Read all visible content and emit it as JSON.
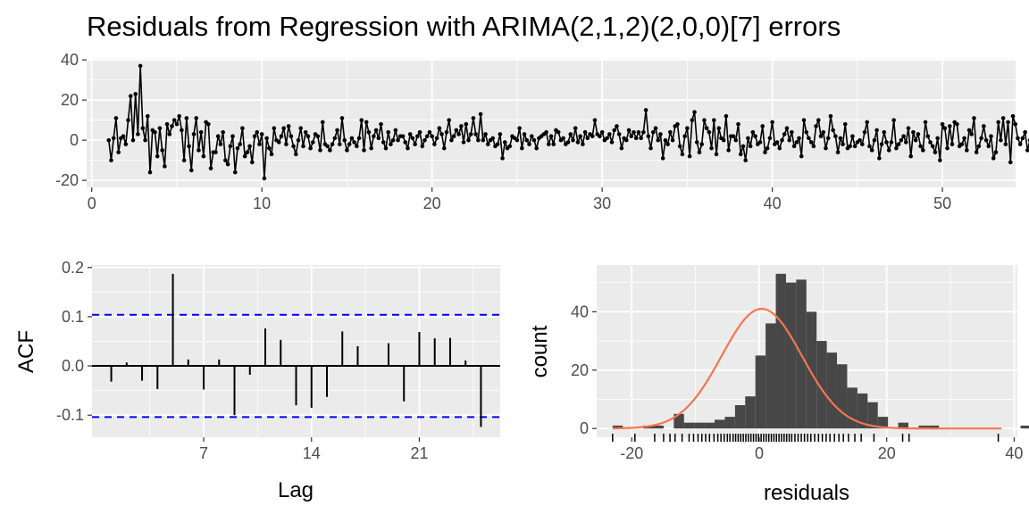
{
  "chart_data": [
    {
      "type": "line",
      "title": "Residuals from Regression with ARIMA(2,1,2)(2,0,0)[7] errors",
      "xlabel": "",
      "ylabel": "",
      "xlim": [
        -0.3,
        54.3
      ],
      "ylim": [
        -23.5,
        40.5
      ],
      "x_ticks": [
        0,
        10,
        20,
        30,
        40,
        50
      ],
      "x_tick_labels": [
        "0",
        "10",
        "20",
        "30",
        "40",
        "50"
      ],
      "y_ticks": [
        -20,
        0,
        20,
        40
      ],
      "y_tick_labels": [
        "-20",
        "0",
        "20",
        "40"
      ],
      "x_start": 1,
      "x_step": 0.142857,
      "grid": true,
      "series": [
        {
          "values": [
            0,
            -10,
            1,
            11,
            -6,
            1,
            2,
            -2,
            10,
            22,
            0,
            23,
            3,
            37,
            6,
            0,
            12,
            -16,
            5,
            4,
            -8,
            6,
            -5,
            -13,
            8,
            3,
            7,
            10,
            8,
            12,
            5,
            -10,
            11,
            -3,
            -15,
            3,
            11,
            -5,
            4,
            -8,
            9,
            8,
            -14,
            -6,
            -6,
            2,
            -2,
            4,
            -10,
            -12,
            -3,
            2,
            -16,
            -4,
            -2,
            6,
            -8,
            -6,
            -3,
            -11,
            2,
            4,
            -2,
            3,
            -19,
            1,
            -4,
            -7,
            6,
            0,
            -1,
            2,
            6,
            -2,
            7,
            2,
            -3,
            -7,
            0,
            6,
            -3,
            4,
            2,
            -4,
            -1,
            3,
            2,
            -5,
            9,
            -2,
            -3,
            -5,
            -2,
            1,
            5,
            -2,
            11,
            0,
            -5,
            -2,
            1,
            -1,
            -3,
            1,
            10,
            -5,
            9,
            4,
            -4,
            2,
            5,
            1,
            8,
            -1,
            -4,
            4,
            -2,
            0,
            5,
            0,
            2,
            2,
            -1,
            -4,
            3,
            1,
            -2,
            2,
            4,
            -3,
            0,
            2,
            4,
            2,
            -2,
            1,
            6,
            3,
            -4,
            4,
            10,
            0,
            2,
            5,
            3,
            7,
            -1,
            8,
            0,
            3,
            11,
            3,
            0,
            13,
            0,
            3,
            -2,
            0,
            1,
            -3,
            -2,
            3,
            -9,
            -1,
            -4,
            -3,
            2,
            1,
            0,
            6,
            -4,
            3,
            0,
            -2,
            2,
            0,
            -4,
            1,
            2,
            3,
            4,
            -2,
            2,
            -2,
            5,
            4,
            0,
            1,
            -2,
            -1,
            3,
            0,
            6,
            -1,
            2,
            -2,
            4,
            1,
            3,
            2,
            10,
            3,
            2,
            4,
            0,
            1,
            3,
            -1,
            5,
            7,
            3,
            -4,
            1,
            0,
            5,
            2,
            4,
            1,
            4,
            1,
            4,
            15,
            2,
            -4,
            4,
            6,
            0,
            3,
            -9,
            0,
            -2,
            4,
            0,
            7,
            8,
            -3,
            -7,
            2,
            6,
            -8,
            10,
            14,
            -1,
            -6,
            -2,
            10,
            6,
            4,
            -4,
            10,
            -7,
            6,
            1,
            0,
            12,
            -5,
            2,
            2,
            0,
            8,
            -7,
            -3,
            -10,
            1,
            -3,
            4,
            2,
            -2,
            -1,
            7,
            -6,
            -4,
            1,
            9,
            -2,
            -1,
            -4,
            0,
            3,
            6,
            0,
            4,
            -3,
            -1,
            1,
            -8,
            10,
            4,
            1,
            -1,
            -3,
            7,
            10,
            2,
            4,
            -4,
            1,
            12,
            5,
            2,
            -6,
            1,
            -2,
            8,
            -4,
            -3,
            2,
            -3,
            -1,
            0,
            -2,
            4,
            9,
            -3,
            -5,
            0,
            5,
            -9,
            -2,
            4,
            -1,
            -5,
            -1,
            10,
            -4,
            -2,
            0,
            2,
            -1,
            6,
            -8,
            4,
            0,
            3,
            -3,
            -5,
            9,
            2,
            -1,
            -3,
            -6,
            1,
            -10,
            8,
            6,
            -4,
            7,
            -2,
            9,
            8,
            -3,
            -2,
            1,
            -5,
            5,
            3,
            11,
            -6,
            -3,
            1,
            7,
            0,
            -3,
            2,
            -9,
            -6,
            9,
            0,
            11,
            -2,
            9,
            -11,
            12,
            8,
            1,
            -2,
            1,
            4,
            -5,
            0,
            4,
            -8,
            7,
            3,
            9,
            4,
            0,
            3,
            5,
            4,
            8,
            2,
            -2,
            4,
            11,
            2,
            -9,
            0,
            3,
            8,
            -8,
            4,
            16,
            0,
            7,
            -7,
            -3,
            5,
            -5,
            2,
            10,
            0,
            0,
            7,
            3,
            -1,
            1,
            6,
            -1,
            2,
            4,
            -8,
            -4,
            0,
            9,
            0,
            2,
            11,
            -4,
            -15,
            1,
            3,
            -8,
            6,
            0,
            12,
            0,
            8,
            13,
            -8,
            -3,
            -6,
            8,
            6,
            5,
            2,
            -7,
            18,
            0,
            0,
            -13,
            -4,
            2,
            -2,
            -1,
            -8,
            -23,
            4,
            -5
          ]
        }
      ]
    },
    {
      "type": "bar",
      "xlabel": "Lag",
      "ylabel": "ACF",
      "xlim": [
        -0.25,
        26.25
      ],
      "ylim": [
        -0.145,
        0.205
      ],
      "x_ticks": [
        7,
        14,
        21
      ],
      "x_tick_labels": [
        "7",
        "14",
        "21"
      ],
      "y_ticks": [
        -0.1,
        0.0,
        0.1,
        0.2
      ],
      "y_tick_labels": [
        "-0.1",
        "0.0",
        "0.1",
        "0.2"
      ],
      "categories": [
        1,
        2,
        3,
        4,
        5,
        6,
        7,
        8,
        9,
        10,
        11,
        12,
        13,
        14,
        15,
        16,
        17,
        18,
        19,
        20,
        21,
        22,
        23,
        24,
        25
      ],
      "values": [
        -0.032,
        0.007,
        -0.03,
        -0.047,
        0.187,
        0.013,
        -0.048,
        0.013,
        -0.1,
        -0.018,
        0.076,
        0.053,
        -0.08,
        -0.085,
        -0.063,
        0.07,
        0.04,
        0.0,
        0.046,
        -0.072,
        0.069,
        0.056,
        0.057,
        0.011,
        -0.124
      ],
      "confidence_bound": 0.104,
      "grid": true
    },
    {
      "type": "histogram",
      "xlabel": "residuals",
      "ylabel": "count",
      "xlim": [
        -25.5,
        40.5
      ],
      "ylim": [
        -3,
        56
      ],
      "x_ticks": [
        -20,
        0,
        20,
        40
      ],
      "x_tick_labels": [
        "-20",
        "0",
        "20",
        "40"
      ],
      "y_ticks": [
        0,
        20,
        40
      ],
      "y_tick_labels": [
        "0",
        "20",
        "40"
      ],
      "bin_start": -23,
      "bin_width": 1.6,
      "bin_counts": [
        1,
        0,
        0,
        1,
        1,
        0,
        5,
        2,
        2,
        2,
        3,
        4,
        8,
        11,
        25,
        36,
        53,
        50,
        51,
        40,
        30,
        26,
        22,
        14,
        12,
        9,
        4,
        0,
        2,
        0,
        1,
        1,
        0,
        0,
        0,
        0,
        0,
        0,
        0,
        0,
        1
      ],
      "normal_curve": {
        "mean": 0.4,
        "sd": 6.3,
        "peak": 41
      },
      "rug": [
        -23,
        -19.5,
        -16.4,
        -15,
        -14,
        -13.2,
        -12.1,
        -11,
        -10.3,
        -9.6,
        -9,
        -8.4,
        -7.8,
        -7.1,
        -6.5,
        -6,
        -5.5,
        -5,
        -4.6,
        -4.1,
        -3.7,
        -3.3,
        -2.9,
        -2.5,
        -2.1,
        -1.7,
        -1.3,
        -0.9,
        -0.5,
        -0.1,
        0.3,
        0.7,
        1.1,
        1.5,
        1.9,
        2.3,
        2.7,
        3.1,
        3.5,
        3.9,
        4.3,
        4.7,
        5.1,
        5.6,
        6.1,
        6.6,
        7.1,
        7.6,
        8.1,
        8.7,
        9.3,
        9.9,
        10.5,
        11.1,
        11.8,
        12.5,
        13.2,
        14,
        15,
        16,
        18,
        22.5,
        23.5,
        37.5
      ],
      "grid": true
    }
  ]
}
